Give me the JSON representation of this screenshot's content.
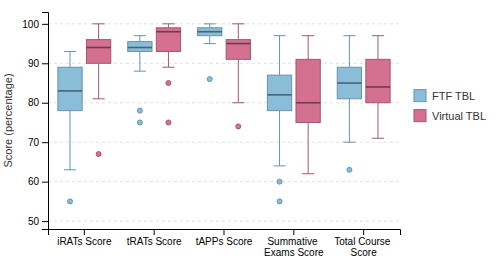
{
  "chart_data": {
    "type": "box",
    "categories": [
      "iRATs Score",
      "tRATs Score",
      "tAPPs Score",
      "Summative Exams Score",
      "Total Course Score"
    ],
    "series": [
      {
        "name": "FTF TBL",
        "color": "#89BDD8",
        "values": [
          {
            "whislo": 63,
            "q1": 78,
            "med": 83,
            "q3": 89,
            "whishi": 93,
            "fliers": [
              55
            ]
          },
          {
            "whislo": 88,
            "q1": 93,
            "med": 94,
            "q3": 95.5,
            "whishi": 97,
            "fliers": [
              78,
              75
            ]
          },
          {
            "whislo": 95,
            "q1": 97,
            "med": 98,
            "q3": 99,
            "whishi": 100,
            "fliers": [
              86
            ]
          },
          {
            "whislo": 64,
            "q1": 78,
            "med": 82,
            "q3": 87,
            "whishi": 97,
            "fliers": [
              60,
              55
            ]
          },
          {
            "whislo": 70,
            "q1": 81,
            "med": 85,
            "q3": 89,
            "whishi": 97,
            "fliers": [
              63
            ]
          }
        ]
      },
      {
        "name": "Virtual TBL",
        "color": "#D47090",
        "values": [
          {
            "whislo": 81,
            "q1": 90,
            "med": 94,
            "q3": 96,
            "whishi": 100,
            "fliers": [
              67
            ]
          },
          {
            "whislo": 89,
            "q1": 93,
            "med": 98,
            "q3": 99,
            "whishi": 100,
            "fliers": [
              85,
              75
            ]
          },
          {
            "whislo": 80,
            "q1": 91,
            "med": 95,
            "q3": 96,
            "whishi": 100,
            "fliers": [
              74
            ]
          },
          {
            "whislo": 62,
            "q1": 75,
            "med": 80,
            "q3": 91,
            "whishi": 97,
            "fliers": []
          },
          {
            "whislo": 71,
            "q1": 80,
            "med": 84,
            "q3": 91,
            "whishi": 97,
            "fliers": []
          }
        ]
      }
    ],
    "y_label": "Score (percentage)",
    "ylim": [
      48,
      103
    ],
    "yticks": [
      50,
      60,
      70,
      80,
      90,
      100
    ],
    "grid": true,
    "legend": "right"
  }
}
